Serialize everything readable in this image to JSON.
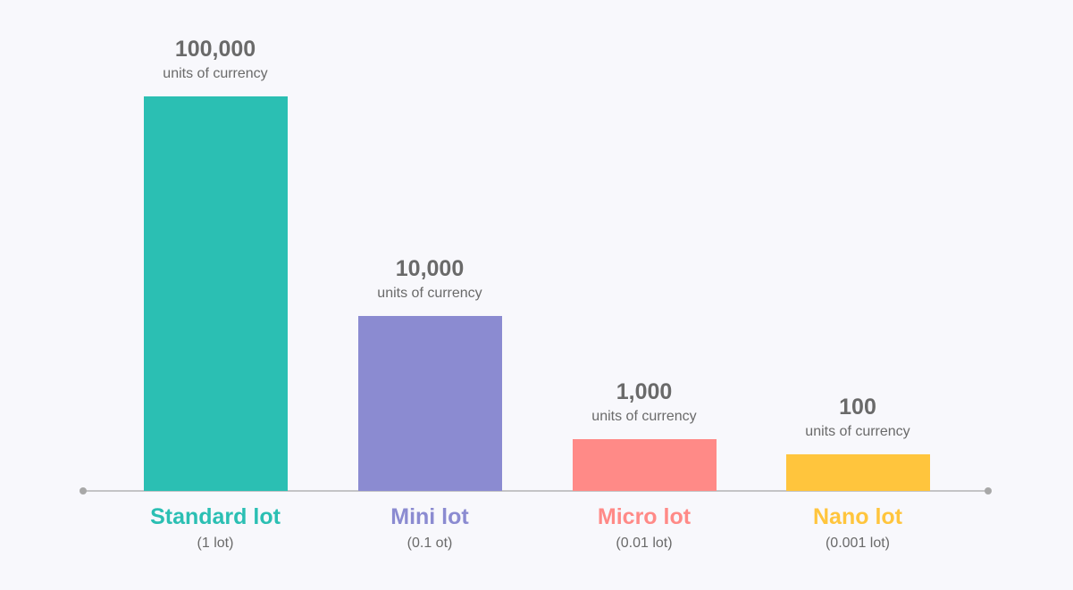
{
  "chart_data": {
    "type": "bar",
    "categories": [
      "Standard lot",
      "Mini lot",
      "Micro lot",
      "Nano lot"
    ],
    "sublabels": [
      "(1 lot)",
      "(0.1 ot)",
      "(0.01 lot)",
      "(0.001 lot)"
    ],
    "values": [
      100000,
      10000,
      1000,
      100
    ],
    "value_labels": [
      "100,000",
      "10,000",
      "1,000",
      "100"
    ],
    "unit_label": "units of currency",
    "colors": [
      "#2bbfb3",
      "#8b8bd1",
      "#ff8a87",
      "#ffc53d"
    ],
    "scale": "log",
    "grid": false,
    "legend": "none"
  }
}
